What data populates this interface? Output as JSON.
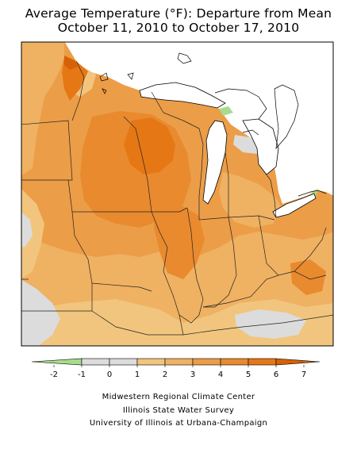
{
  "title": {
    "line1": "Average Temperature (°F): Departure from Mean",
    "line2": "October 11, 2010 to October 17, 2010"
  },
  "legend": {
    "ticks": [
      "-2",
      "-1",
      "0",
      "1",
      "2",
      "3",
      "4",
      "5",
      "6",
      "7"
    ],
    "colors": [
      "#a8dc8c",
      "#dcdcdc",
      "#dcdcdc",
      "#f1c57e",
      "#efb162",
      "#ec9d47",
      "#e98a2e",
      "#e67715",
      "#d56207"
    ]
  },
  "credits": {
    "line1": "Midwestern Regional Climate Center",
    "line2": "Illinois State Water Survey",
    "line3": "University of Illinois at Urbana-Champaign"
  }
}
